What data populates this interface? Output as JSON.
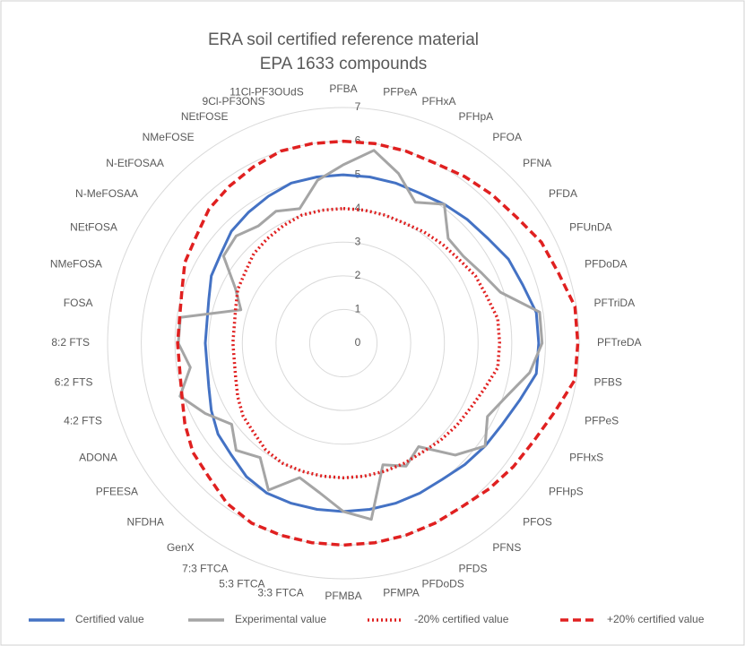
{
  "chart_data": {
    "type": "radar",
    "title": [
      "ERA soil certified reference material",
      "EPA 1633 compounds"
    ],
    "categories": [
      "PFBA",
      "PFPeA",
      "PFHxA",
      "PFHpA",
      "PFOA",
      "PFNA",
      "PFDA",
      "PFUnDA",
      "PFDoDA",
      "PFTriDA",
      "PFTreDA",
      "PFBS",
      "PFPeS",
      "PFHxS",
      "PFHpS",
      "PFOS",
      "PFNS",
      "PFDS",
      "PFDoDS",
      "PFMPA",
      "PFMBA",
      "3:3 FTCA",
      "5:3 FTCA",
      "7:3 FTCA",
      "GenX",
      "NFDHA",
      "PFEESA",
      "ADONA",
      "4:2 FTS",
      "6:2 FTS",
      "8:2 FTS",
      "FOSA",
      "NMeFOSA",
      "NEtFOSA",
      "N-MeFOSAA",
      "N-EtFOSAA",
      "NMeFOSE",
      "NEtFOSE",
      "9Cl-PF3ONS",
      "11Cl-PF3OUdS"
    ],
    "rlim": [
      0,
      7
    ],
    "rticks": [
      0,
      1,
      2,
      3,
      4,
      5,
      6,
      7
    ],
    "grid": true,
    "legend": "bottom",
    "series": [
      {
        "name": "Certified value",
        "color": "#4472c4",
        "style": "solid",
        "values": [
          5.0,
          5.0,
          5.0,
          5.0,
          5.1,
          5.2,
          5.3,
          5.5,
          5.6,
          5.8,
          5.8,
          5.8,
          5.5,
          5.3,
          5.2,
          5.1,
          5.0,
          5.0,
          5.0,
          5.0,
          5.0,
          5.0,
          5.0,
          5.0,
          4.9,
          4.7,
          4.6,
          4.4,
          4.2,
          4.1,
          4.1,
          4.1,
          4.2,
          4.4,
          4.5,
          4.7,
          4.8,
          4.9,
          5.0,
          5.0
        ]
      },
      {
        "name": "Experimental value",
        "color": "#a5a5a5",
        "style": "solid",
        "values": [
          5.3,
          5.8,
          5.3,
          4.7,
          5.1,
          4.4,
          4.4,
          4.6,
          4.9,
          5.9,
          5.9,
          5.6,
          5.1,
          4.8,
          5.2,
          4.7,
          3.8,
          4.1,
          3.8,
          5.3,
          5.0,
          4.5,
          4.2,
          4.9,
          4.2,
          4.5,
          4.1,
          4.6,
          5.1,
          4.6,
          4.9,
          4.9,
          3.2,
          3.6,
          4.4,
          4.5,
          4.3,
          4.4,
          4.2,
          4.9
        ]
      },
      {
        "name": "-20% certified value",
        "color": "#e02020",
        "style": "dotted",
        "values": [
          4.0,
          4.0,
          4.0,
          4.0,
          4.08,
          4.16,
          4.24,
          4.4,
          4.48,
          4.64,
          4.64,
          4.64,
          4.4,
          4.24,
          4.16,
          4.08,
          4.0,
          4.0,
          4.0,
          4.0,
          4.0,
          4.0,
          4.0,
          4.0,
          3.92,
          3.76,
          3.68,
          3.52,
          3.36,
          3.28,
          3.28,
          3.28,
          3.36,
          3.52,
          3.6,
          3.76,
          3.84,
          3.92,
          4.0,
          4.0
        ]
      },
      {
        "name": "+20% certified value",
        "color": "#e02020",
        "style": "dashed",
        "values": [
          6.0,
          6.0,
          6.0,
          6.0,
          6.12,
          6.24,
          6.36,
          6.6,
          6.72,
          6.96,
          6.96,
          6.96,
          6.6,
          6.36,
          6.24,
          6.12,
          6.0,
          6.0,
          6.0,
          6.0,
          6.0,
          6.0,
          6.0,
          6.0,
          5.88,
          5.64,
          5.52,
          5.28,
          5.04,
          4.92,
          4.92,
          4.92,
          5.04,
          5.28,
          5.4,
          5.64,
          5.76,
          5.88,
          6.0,
          6.0
        ]
      }
    ]
  }
}
